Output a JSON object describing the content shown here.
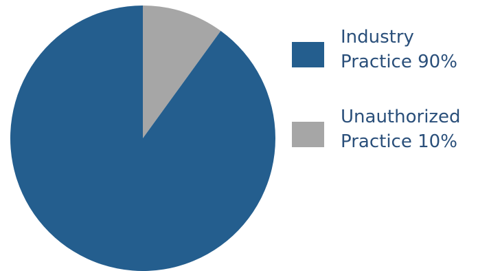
{
  "chart_data": {
    "type": "pie",
    "title": "",
    "series": [
      {
        "label_line1": "Industry",
        "label_line2": "Practice 90%",
        "value": 90,
        "color": "#245e8e"
      },
      {
        "label_line1": "Unauthorized",
        "label_line2": "Practice 10%",
        "value": 10,
        "color": "#a6a6a6"
      }
    ],
    "legend_position": "right"
  }
}
